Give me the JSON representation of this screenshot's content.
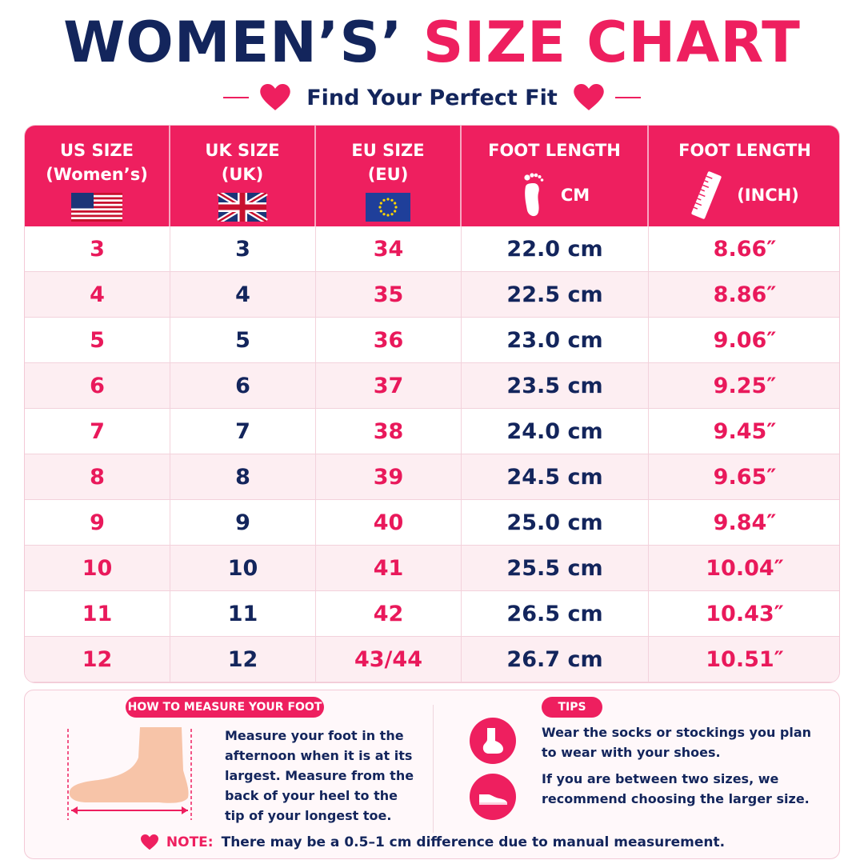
{
  "title": {
    "part1": "WOMEN’S’",
    "part2": "SIZE CHART"
  },
  "subtitle": "Find Your Perfect Fit",
  "columns": [
    {
      "line1": "US SIZE",
      "line2": "(Women’s)",
      "icon": "us-flag-icon"
    },
    {
      "line1": "UK SIZE",
      "line2": "(UK)",
      "icon": "uk-flag-icon"
    },
    {
      "line1": "EU SIZE",
      "line2": "(EU)",
      "icon": "eu-flag-icon"
    },
    {
      "line1": "FOOT LENGTH",
      "line2": "CM",
      "icon": "footprint-icon"
    },
    {
      "line1": "FOOT LENGTH",
      "line2": "(INCH)",
      "icon": "ruler-icon"
    }
  ],
  "rows": [
    {
      "us": "3",
      "uk": "3",
      "eu": "34",
      "cm": "22.0 cm",
      "inch": "8.66″"
    },
    {
      "us": "4",
      "uk": "4",
      "eu": "35",
      "cm": "22.5 cm",
      "inch": "8.86″"
    },
    {
      "us": "5",
      "uk": "5",
      "eu": "36",
      "cm": "23.0 cm",
      "inch": "9.06″"
    },
    {
      "us": "6",
      "uk": "6",
      "eu": "37",
      "cm": "23.5 cm",
      "inch": "9.25″"
    },
    {
      "us": "7",
      "uk": "7",
      "eu": "38",
      "cm": "24.0 cm",
      "inch": "9.45″"
    },
    {
      "us": "8",
      "uk": "8",
      "eu": "39",
      "cm": "24.5 cm",
      "inch": "9.65″"
    },
    {
      "us": "9",
      "uk": "9",
      "eu": "40",
      "cm": "25.0 cm",
      "inch": "9.84″"
    },
    {
      "us": "10",
      "uk": "10",
      "eu": "41",
      "cm": "25.5 cm",
      "inch": "10.04″"
    },
    {
      "us": "11",
      "uk": "11",
      "eu": "42",
      "cm": "26.5 cm",
      "inch": "10.43″"
    },
    {
      "us": "12",
      "uk": "12",
      "eu": "43/44",
      "cm": "26.7 cm",
      "inch": "10.51″"
    }
  ],
  "measure": {
    "heading": "HOW TO MEASURE YOUR FOOT",
    "text": "Measure your foot in the afternoon when it is at its largest. Measure from the back of your heel to the tip of your longest toe."
  },
  "tips": {
    "heading": "TIPS",
    "items": [
      {
        "icon": "sock-icon",
        "text": "Wear the socks or stockings you plan to wear with your shoes."
      },
      {
        "icon": "shoe-icon",
        "text": "If you are between two sizes, we recommend choosing the larger size."
      }
    ]
  },
  "note": {
    "label": "NOTE:",
    "text": "There may be a 0.5–1 cm difference due to manual measurement."
  },
  "colors": {
    "pink": "#ee1f5f",
    "navy": "#13255c",
    "row_alt": "#fdeef2"
  }
}
